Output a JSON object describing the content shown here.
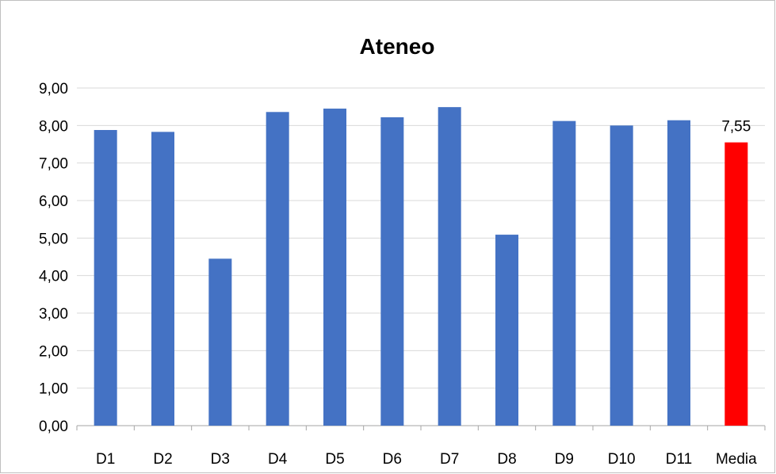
{
  "chart_data": {
    "type": "bar",
    "title": "Ateneo",
    "xlabel": "",
    "ylabel": "",
    "categories": [
      "D1",
      "D2",
      "D3",
      "D4",
      "D5",
      "D6",
      "D7",
      "D8",
      "D9",
      "D10",
      "D11",
      "Media"
    ],
    "values": [
      7.88,
      7.83,
      4.45,
      8.36,
      8.45,
      8.22,
      8.49,
      5.09,
      8.12,
      8.0,
      8.14,
      7.55
    ],
    "bar_colors": [
      "#4472C4",
      "#4472C4",
      "#4472C4",
      "#4472C4",
      "#4472C4",
      "#4472C4",
      "#4472C4",
      "#4472C4",
      "#4472C4",
      "#4472C4",
      "#4472C4",
      "#FF0000"
    ],
    "ylim": [
      0,
      9
    ],
    "yticks": [
      "0,00",
      "1,00",
      "2,00",
      "3,00",
      "4,00",
      "5,00",
      "6,00",
      "7,00",
      "8,00",
      "9,00"
    ],
    "data_labels": [
      {
        "category": "Media",
        "text": "7,55"
      }
    ],
    "grid": true,
    "legend": "none"
  }
}
